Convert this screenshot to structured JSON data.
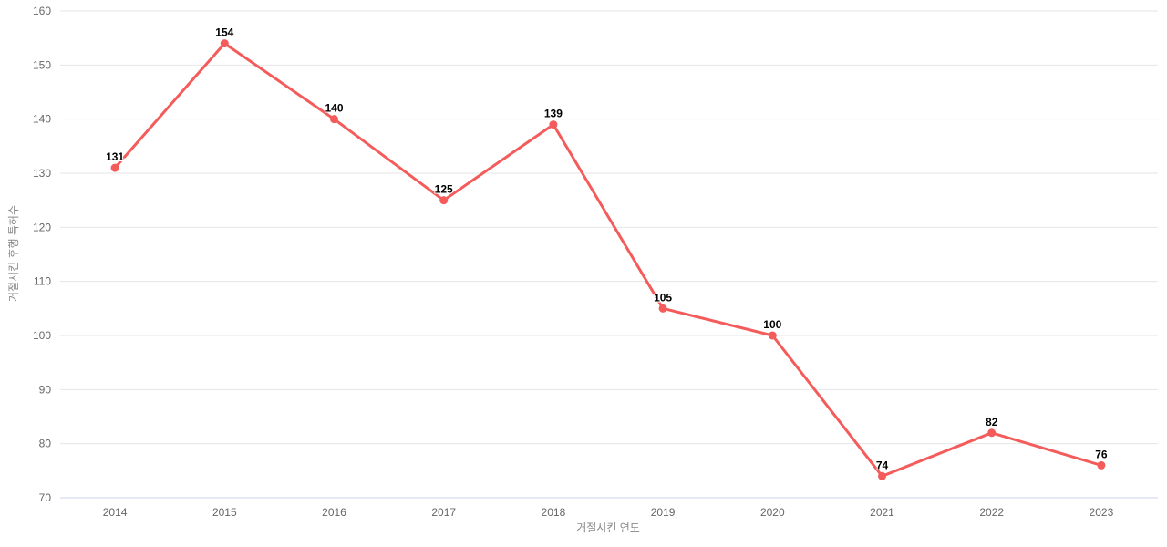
{
  "chart_data": {
    "type": "line",
    "title": "",
    "xlabel": "거절시킨 연도",
    "ylabel": "거절시킨 후행 특허수",
    "categories": [
      "2014",
      "2015",
      "2016",
      "2017",
      "2018",
      "2019",
      "2020",
      "2021",
      "2022",
      "2023"
    ],
    "values": [
      131,
      154,
      140,
      125,
      139,
      105,
      100,
      74,
      82,
      76
    ],
    "data_labels": [
      "131",
      "154",
      "140",
      "125",
      "139",
      "105",
      "100",
      "74",
      "82",
      "76"
    ],
    "ylim": [
      70,
      160
    ],
    "yticks": [
      70,
      80,
      90,
      100,
      110,
      120,
      130,
      140,
      150,
      160
    ],
    "grid": "horizontal",
    "legend": "none",
    "colors": {
      "series": "#f45c5c",
      "marker": "#f45c5c",
      "gridline": "#e6e6e6",
      "axis_line": "#ccd6eb",
      "tick_label": "#666666",
      "axis_title": "#888888",
      "data_label": "#000000",
      "background": "#ffffff"
    }
  }
}
